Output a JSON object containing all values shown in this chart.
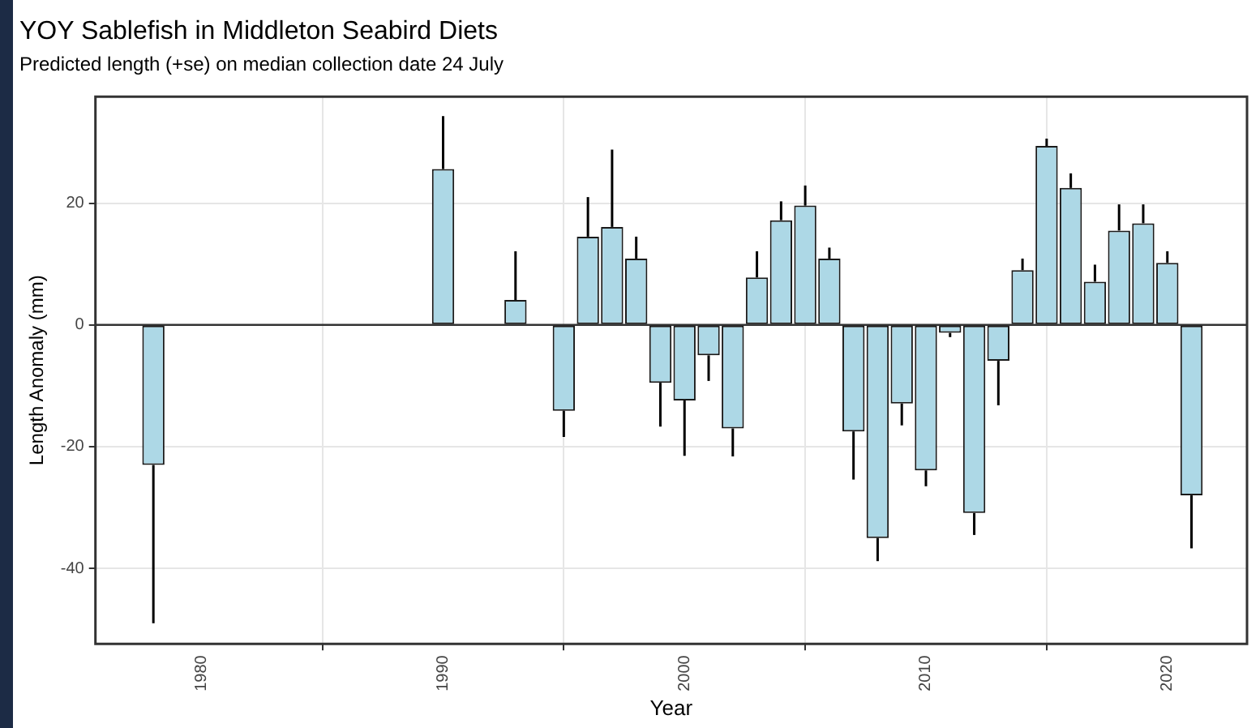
{
  "chart_data": {
    "type": "bar",
    "title": "YOY Sablefish in Middleton Seabird Diets",
    "subtitle": "Predicted length (+se) on median collection date 24 July",
    "xlabel": "Year",
    "ylabel": "Length Anomaly (mm)",
    "x": [
      1978,
      1990,
      1993,
      1995,
      1996,
      1997,
      1998,
      1999,
      2000,
      2001,
      2002,
      2003,
      2004,
      2005,
      2006,
      2007,
      2008,
      2009,
      2010,
      2011,
      2012,
      2013,
      2014,
      2015,
      2016,
      2017,
      2018,
      2019,
      2020,
      2021
    ],
    "values": [
      -23,
      25.6,
      4.1,
      -14.1,
      14.5,
      16.1,
      10.9,
      -9.5,
      -12.4,
      -5,
      -17,
      7.8,
      17.2,
      19.6,
      10.9,
      -17.5,
      -35,
      -12.9,
      -23.9,
      -1.3,
      -30.9,
      -5.9,
      9,
      29.4,
      22.5,
      7.1,
      15.5,
      16.7,
      10.2,
      -28
    ],
    "errors": [
      [
        -49,
        -23
      ],
      [
        25.6,
        34.3
      ],
      [
        4.1,
        12.1
      ],
      [
        -18.4,
        -14.1
      ],
      [
        14.5,
        21
      ],
      [
        16.1,
        28.8
      ],
      [
        10.9,
        14.5
      ],
      [
        -16.7,
        -9.5
      ],
      [
        -21.5,
        -12.4
      ],
      [
        -9.2,
        -5
      ],
      [
        -21.6,
        -17
      ],
      [
        7.8,
        12.1
      ],
      [
        17.2,
        20.3
      ],
      [
        19.6,
        22.9
      ],
      [
        10.9,
        12.7
      ],
      [
        -25.4,
        -17.5
      ],
      [
        -38.8,
        -35
      ],
      [
        -16.5,
        -12.9
      ],
      [
        -26.5,
        -23.9
      ],
      [
        -2,
        -1.3
      ],
      [
        -34.5,
        -30.9
      ],
      [
        -13.2,
        -5.9
      ],
      [
        9,
        10.9
      ],
      [
        29.4,
        30.6
      ],
      [
        22.5,
        24.9
      ],
      [
        7.1,
        9.9
      ],
      [
        15.5,
        19.8
      ],
      [
        16.7,
        19.8
      ],
      [
        10.2,
        12.1
      ],
      [
        -36.7,
        -28
      ]
    ],
    "color": "#add8e6",
    "xlim": [
      1975.6,
      2023.3
    ],
    "xticks": [
      1980,
      1990,
      2000,
      2010,
      2020
    ],
    "ylim": [
      -52.4,
      37.5
    ],
    "yticks": [
      -40,
      -20,
      0,
      20
    ],
    "ref_lines": [
      {
        "axis": "y",
        "value": 0,
        "color": "#333333"
      }
    ],
    "grid": true
  }
}
